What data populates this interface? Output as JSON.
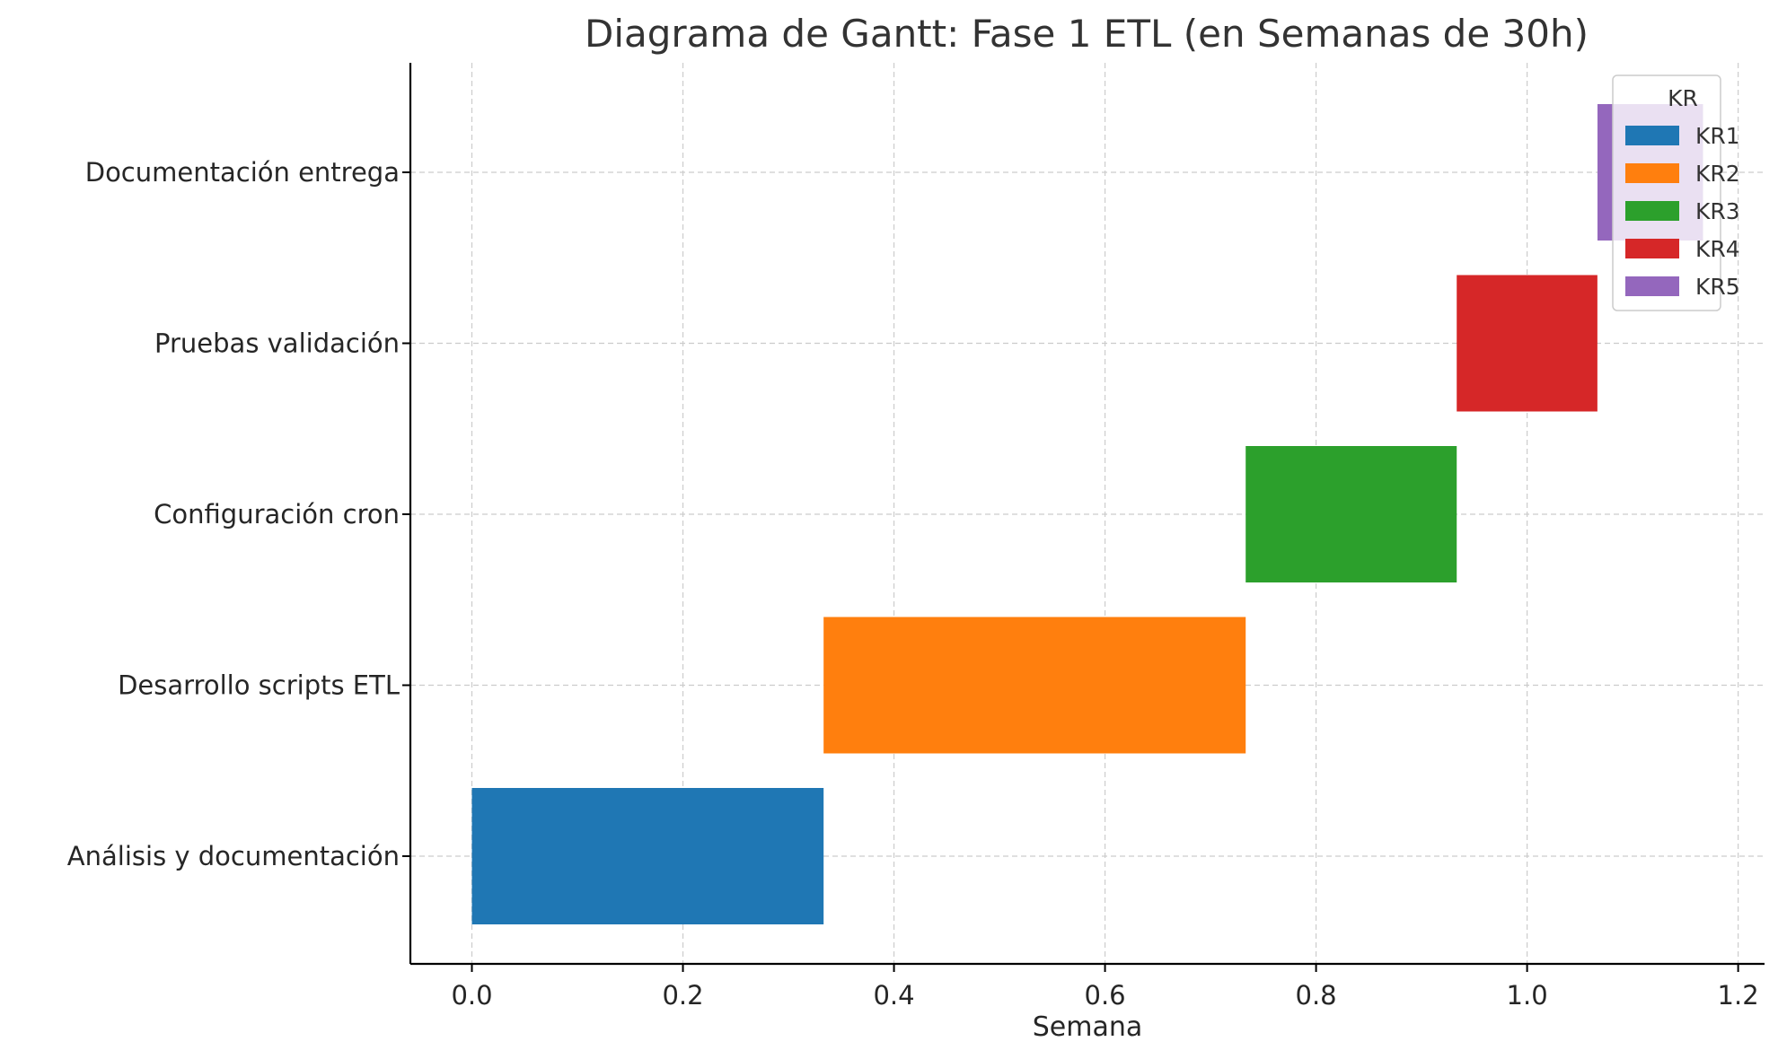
{
  "chart_data": {
    "type": "gantt",
    "title": "Diagrama de Gantt: Fase 1 ETL (en Semanas de 30h)",
    "xlabel": "Semana",
    "ylabel": "",
    "xlim": [
      -0.0583,
      1.225
    ],
    "xticks": [
      "0.0",
      "0.2",
      "0.4",
      "0.6",
      "0.8",
      "1.0",
      "1.2"
    ],
    "xtick_values": [
      0.0,
      0.2,
      0.4,
      0.6,
      0.8,
      1.0,
      1.2
    ],
    "grid": true,
    "legend": {
      "title": "KR",
      "placement": "top-right",
      "entries": [
        {
          "label": "KR1",
          "color": "#1f77b4"
        },
        {
          "label": "KR2",
          "color": "#ff7f0e"
        },
        {
          "label": "KR3",
          "color": "#2ca02c"
        },
        {
          "label": "KR4",
          "color": "#d62728"
        },
        {
          "label": "KR5",
          "color": "#9467bd"
        }
      ]
    },
    "tasks": [
      {
        "name": "Análisis y documentación",
        "kr": "KR1",
        "start": 0.0,
        "duration": 0.3333,
        "color": "#1f77b4"
      },
      {
        "name": "Desarrollo scripts ETL",
        "kr": "KR2",
        "start": 0.3333,
        "duration": 0.4,
        "color": "#ff7f0e"
      },
      {
        "name": "Configuración cron",
        "kr": "KR3",
        "start": 0.7333,
        "duration": 0.2,
        "color": "#2ca02c"
      },
      {
        "name": "Pruebas validación",
        "kr": "KR4",
        "start": 0.9333,
        "duration": 0.1333,
        "color": "#d62728"
      },
      {
        "name": "Documentación entrega",
        "kr": "KR5",
        "start": 1.0667,
        "duration": 0.1,
        "color": "#9467bd"
      }
    ]
  }
}
